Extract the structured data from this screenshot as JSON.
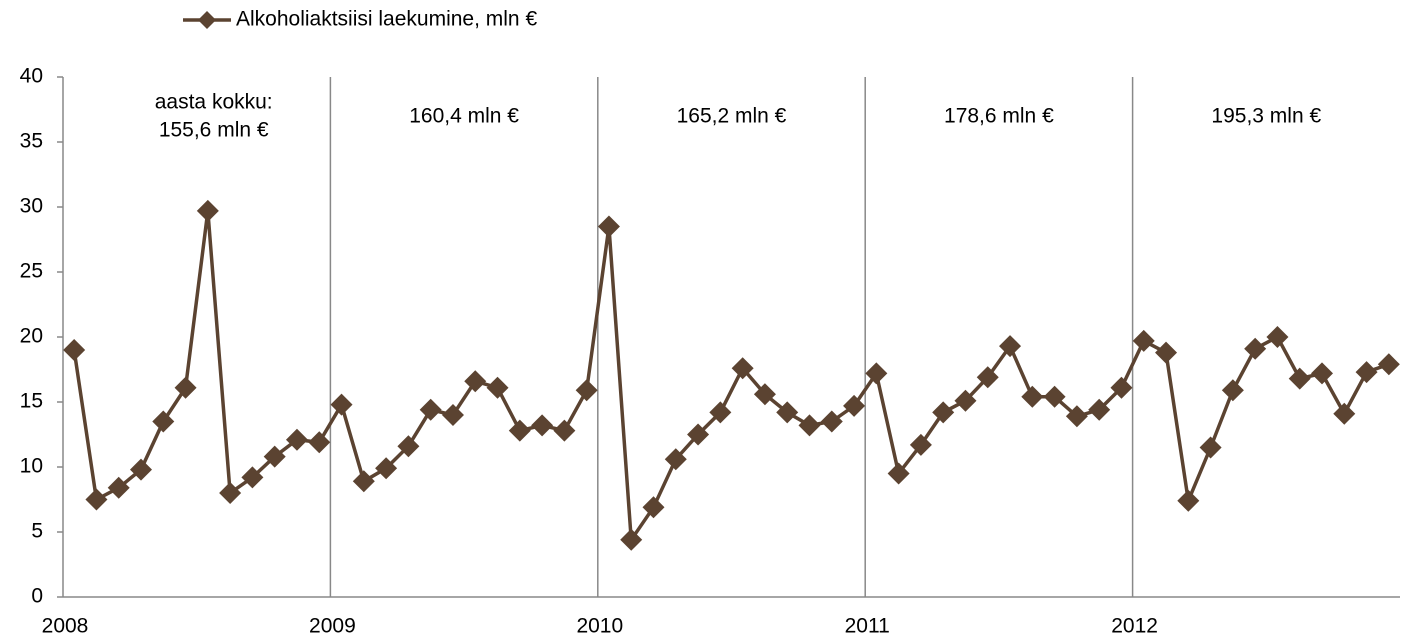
{
  "chart_data": {
    "type": "line",
    "series": [
      {
        "name": "Alkoholiaktsiisi laekumine, mln €",
        "color": "#5b4331",
        "values": [
          19.0,
          7.5,
          8.4,
          9.8,
          13.5,
          16.1,
          29.7,
          8.0,
          9.2,
          10.8,
          12.1,
          11.9,
          14.8,
          8.9,
          9.9,
          11.6,
          14.4,
          14.0,
          16.6,
          16.1,
          12.8,
          13.2,
          12.8,
          15.9,
          28.5,
          4.4,
          6.9,
          10.6,
          12.5,
          14.2,
          17.6,
          15.6,
          14.2,
          13.2,
          13.5,
          14.7,
          17.2,
          9.5,
          11.7,
          14.2,
          15.1,
          16.9,
          19.3,
          15.4,
          15.4,
          13.9,
          14.4,
          16.1,
          19.7,
          18.8,
          7.4,
          11.5,
          15.9,
          19.1,
          20.0,
          16.8,
          17.2,
          14.1,
          17.3,
          17.9
        ]
      }
    ],
    "categories": [
      "2008",
      null,
      null,
      null,
      null,
      null,
      null,
      null,
      null,
      null,
      null,
      null,
      "2009",
      null,
      null,
      null,
      null,
      null,
      null,
      null,
      null,
      null,
      null,
      null,
      "2010",
      null,
      null,
      null,
      null,
      null,
      null,
      null,
      null,
      null,
      null,
      null,
      "2011",
      null,
      null,
      null,
      null,
      null,
      null,
      null,
      null,
      null,
      null,
      null,
      "2012",
      null,
      null,
      null,
      null,
      null,
      null,
      null,
      null,
      null,
      null,
      null
    ],
    "ylim": [
      0,
      40
    ],
    "yticks": [
      0,
      5,
      10,
      15,
      20,
      25,
      30,
      35,
      40
    ],
    "annotations": [
      [
        "aasta kokku:",
        "155,6 mln €"
      ],
      [
        "160,4 mln €"
      ],
      [
        "165,2 mln €"
      ],
      [
        "178,6 mln €"
      ],
      [
        "195,3 mln €"
      ]
    ],
    "legend": "top"
  }
}
